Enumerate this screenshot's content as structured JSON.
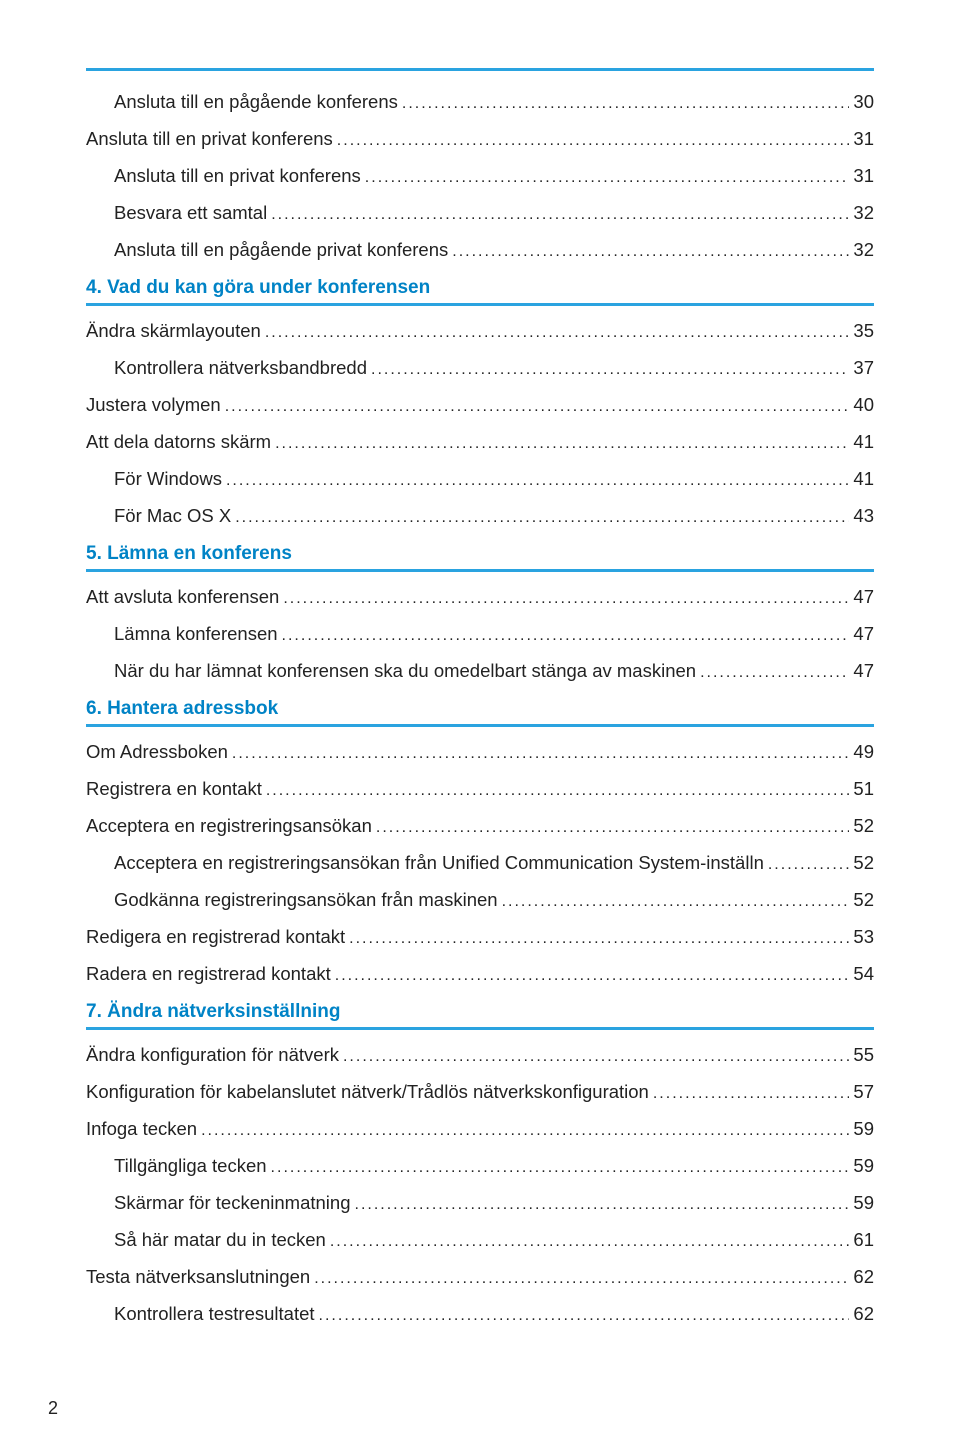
{
  "page_number": "2",
  "colors": {
    "accent": "#2aa3e0",
    "heading": "#0083c6",
    "text": "#222222",
    "background": "#ffffff"
  },
  "typography": {
    "body_fontsize_pt": 14,
    "heading_fontsize_pt": 14.5,
    "font_family": "Arial, Helvetica, sans-serif"
  },
  "toc": [
    {
      "type": "row",
      "level": 1,
      "text": "Ansluta till en pågående konferens",
      "page": "30"
    },
    {
      "type": "row",
      "level": 0,
      "text": "Ansluta till en privat konferens",
      "page": "31"
    },
    {
      "type": "row",
      "level": 1,
      "text": "Ansluta till en privat konferens",
      "page": "31"
    },
    {
      "type": "row",
      "level": 1,
      "text": "Besvara ett samtal",
      "page": "32"
    },
    {
      "type": "row",
      "level": 1,
      "text": "Ansluta till en pågående privat konferens",
      "page": "32"
    },
    {
      "type": "heading",
      "text": "4. Vad du kan göra under konferensen"
    },
    {
      "type": "row",
      "level": 0,
      "text": "Ändra skärmlayouten",
      "page": "35"
    },
    {
      "type": "row",
      "level": 1,
      "text": "Kontrollera nätverksbandbredd",
      "page": "37"
    },
    {
      "type": "row",
      "level": 0,
      "text": "Justera volymen",
      "page": "40"
    },
    {
      "type": "row",
      "level": 0,
      "text": "Att dela datorns skärm",
      "page": "41"
    },
    {
      "type": "row",
      "level": 1,
      "text": "För Windows",
      "page": "41"
    },
    {
      "type": "row",
      "level": 1,
      "text": "För Mac OS X",
      "page": "43"
    },
    {
      "type": "heading",
      "text": "5. Lämna en konferens"
    },
    {
      "type": "row",
      "level": 0,
      "text": "Att avsluta konferensen",
      "page": "47"
    },
    {
      "type": "row",
      "level": 1,
      "text": "Lämna konferensen",
      "page": "47"
    },
    {
      "type": "row",
      "level": 1,
      "text": "När du har lämnat konferensen ska du omedelbart stänga av maskinen",
      "page": "47"
    },
    {
      "type": "heading",
      "text": "6. Hantera adressbok"
    },
    {
      "type": "row",
      "level": 0,
      "text": "Om Adressboken",
      "page": "49"
    },
    {
      "type": "row",
      "level": 0,
      "text": "Registrera en kontakt",
      "page": "51"
    },
    {
      "type": "row",
      "level": 0,
      "text": "Acceptera en registreringsansökan",
      "page": "52"
    },
    {
      "type": "row",
      "level": 1,
      "text": "Acceptera en registreringsansökan från Unified Communication System-inställn",
      "page": "52"
    },
    {
      "type": "row",
      "level": 1,
      "text": "Godkänna registreringsansökan från maskinen",
      "page": "52"
    },
    {
      "type": "row",
      "level": 0,
      "text": "Redigera en registrerad kontakt",
      "page": "53"
    },
    {
      "type": "row",
      "level": 0,
      "text": "Radera en registrerad kontakt",
      "page": "54"
    },
    {
      "type": "heading",
      "text": "7. Ändra nätverksinställning"
    },
    {
      "type": "row",
      "level": 0,
      "text": "Ändra konfiguration för nätverk",
      "page": "55"
    },
    {
      "type": "row",
      "level": 0,
      "text": "Konfiguration för kabelanslutet nätverk/Trådlös nätverkskonfiguration",
      "page": "57"
    },
    {
      "type": "row",
      "level": 0,
      "text": "Infoga tecken",
      "page": "59"
    },
    {
      "type": "row",
      "level": 1,
      "text": "Tillgängliga tecken",
      "page": "59"
    },
    {
      "type": "row",
      "level": 1,
      "text": "Skärmar för teckeninmatning",
      "page": "59"
    },
    {
      "type": "row",
      "level": 1,
      "text": "Så här matar du in tecken",
      "page": "61"
    },
    {
      "type": "row",
      "level": 0,
      "text": "Testa nätverksanslutningen",
      "page": "62"
    },
    {
      "type": "row",
      "level": 1,
      "text": "Kontrollera testresultatet",
      "page": "62"
    }
  ]
}
